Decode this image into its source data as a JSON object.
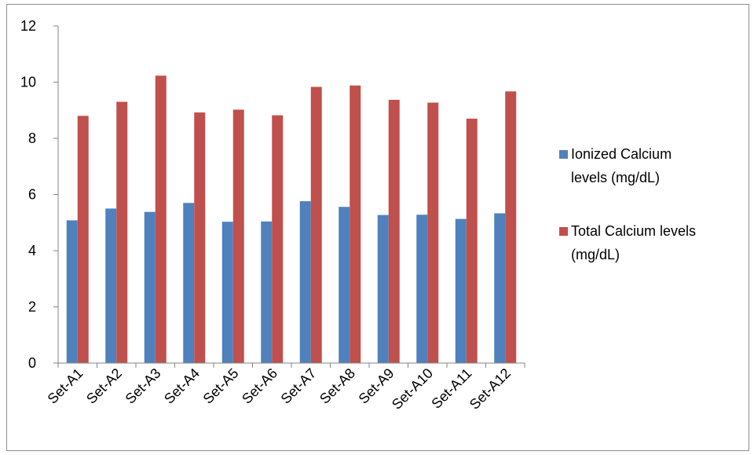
{
  "chart_data": {
    "type": "bar",
    "categories": [
      "Set-A1",
      "Set-A2",
      "Set-A3",
      "Set-A4",
      "Set-A5",
      "Set-A6",
      "Set-A7",
      "Set-A8",
      "Set-A9",
      "Set-A10",
      "Set-A11",
      "Set-A12"
    ],
    "series": [
      {
        "name": "Ionized Calcium levels (mg/dL)",
        "legend_lines": [
          "Ionized Calcium",
          "levels (mg/dL)"
        ],
        "color": "#4f81bd",
        "values": [
          5.08,
          5.5,
          5.38,
          5.7,
          5.03,
          5.04,
          5.76,
          5.56,
          5.27,
          5.28,
          5.13,
          5.33
        ]
      },
      {
        "name": "Total Calcium levels (mg/dL)",
        "legend_lines": [
          "Total Calcium levels",
          "(mg/dL)"
        ],
        "color": "#c0504d",
        "values": [
          8.8,
          9.3,
          10.23,
          8.92,
          9.02,
          8.82,
          9.83,
          9.88,
          9.37,
          9.27,
          8.7,
          9.67
        ]
      }
    ],
    "yticks": [
      "0",
      "2",
      "4",
      "6",
      "8",
      "10",
      "12"
    ],
    "ylim": [
      0,
      12
    ],
    "title": "",
    "xlabel": "",
    "ylabel": "",
    "grid": false,
    "legend_position": "right"
  }
}
